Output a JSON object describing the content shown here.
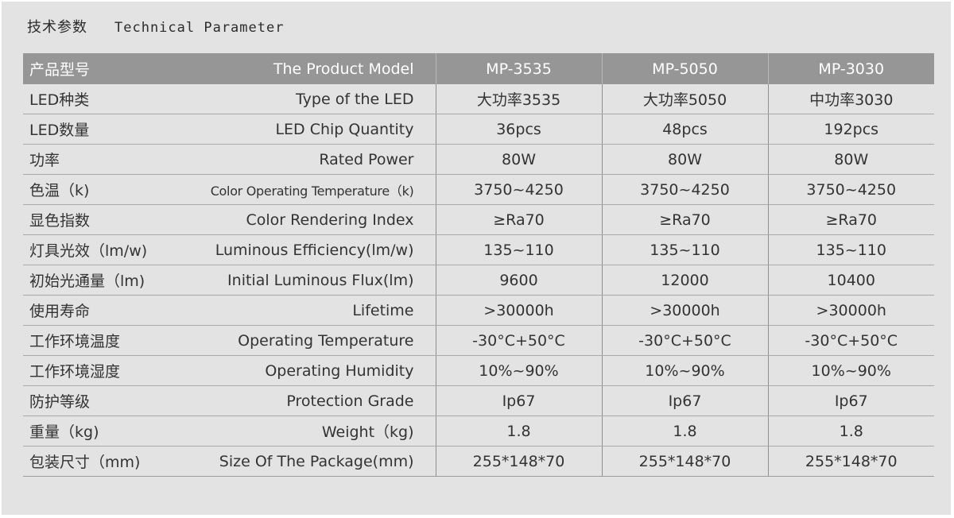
{
  "title": {
    "cn": "技术参数",
    "en": "Technical Parameter"
  },
  "table": {
    "header": {
      "cn": "产品型号",
      "en": "The Product Model",
      "models": [
        "MP-3535",
        "MP-5050",
        "MP-3030"
      ]
    },
    "rows": [
      {
        "cn": "LED种类",
        "en": "Type of the LED",
        "values": [
          "大功率3535",
          "大功率5050",
          "中功率3030"
        ]
      },
      {
        "cn": "LED数量",
        "en": "LED Chip Quantity",
        "values": [
          "36pcs",
          "48pcs",
          "192pcs"
        ]
      },
      {
        "cn": "功率",
        "en": "Rated Power",
        "values": [
          "80W",
          "80W",
          "80W"
        ]
      },
      {
        "cn": "色温（k)",
        "en": "Color Operating Temperature（k)",
        "values": [
          "3750~4250",
          "3750~4250",
          "3750~4250"
        ]
      },
      {
        "cn": "显色指数",
        "en": "Color Rendering Index",
        "values": [
          "≥Ra70",
          "≥Ra70",
          "≥Ra70"
        ]
      },
      {
        "cn": "灯具光效（lm/w)",
        "en": "Luminous Efficiency(lm/w)",
        "values": [
          "135~110",
          "135~110",
          "135~110"
        ]
      },
      {
        "cn": "初始光通量（lm)",
        "en": "Initial Luminous Flux(lm)",
        "values": [
          "9600",
          "12000",
          "10400"
        ]
      },
      {
        "cn": "使用寿命",
        "en": "Lifetime",
        "values": [
          ">30000h",
          ">30000h",
          ">30000h"
        ]
      },
      {
        "cn": "工作环境温度",
        "en": "Operating Temperature",
        "values": [
          "-30°C+50°C",
          "-30°C+50°C",
          "-30°C+50°C"
        ]
      },
      {
        "cn": "工作环境湿度",
        "en": "Operating Humidity",
        "values": [
          "10%~90%",
          "10%~90%",
          "10%~90%"
        ]
      },
      {
        "cn": "防护等级",
        "en": "Protection Grade",
        "values": [
          "Ip67",
          "Ip67",
          "Ip67"
        ]
      },
      {
        "cn": "重量（kg)",
        "en": "Weight（kg)",
        "values": [
          "1.8",
          "1.8",
          "1.8"
        ]
      },
      {
        "cn": "包装尺寸（mm)",
        "en": "Size Of The Package(mm)",
        "values": [
          "255*148*70",
          "255*148*70",
          "255*148*70"
        ]
      }
    ]
  }
}
